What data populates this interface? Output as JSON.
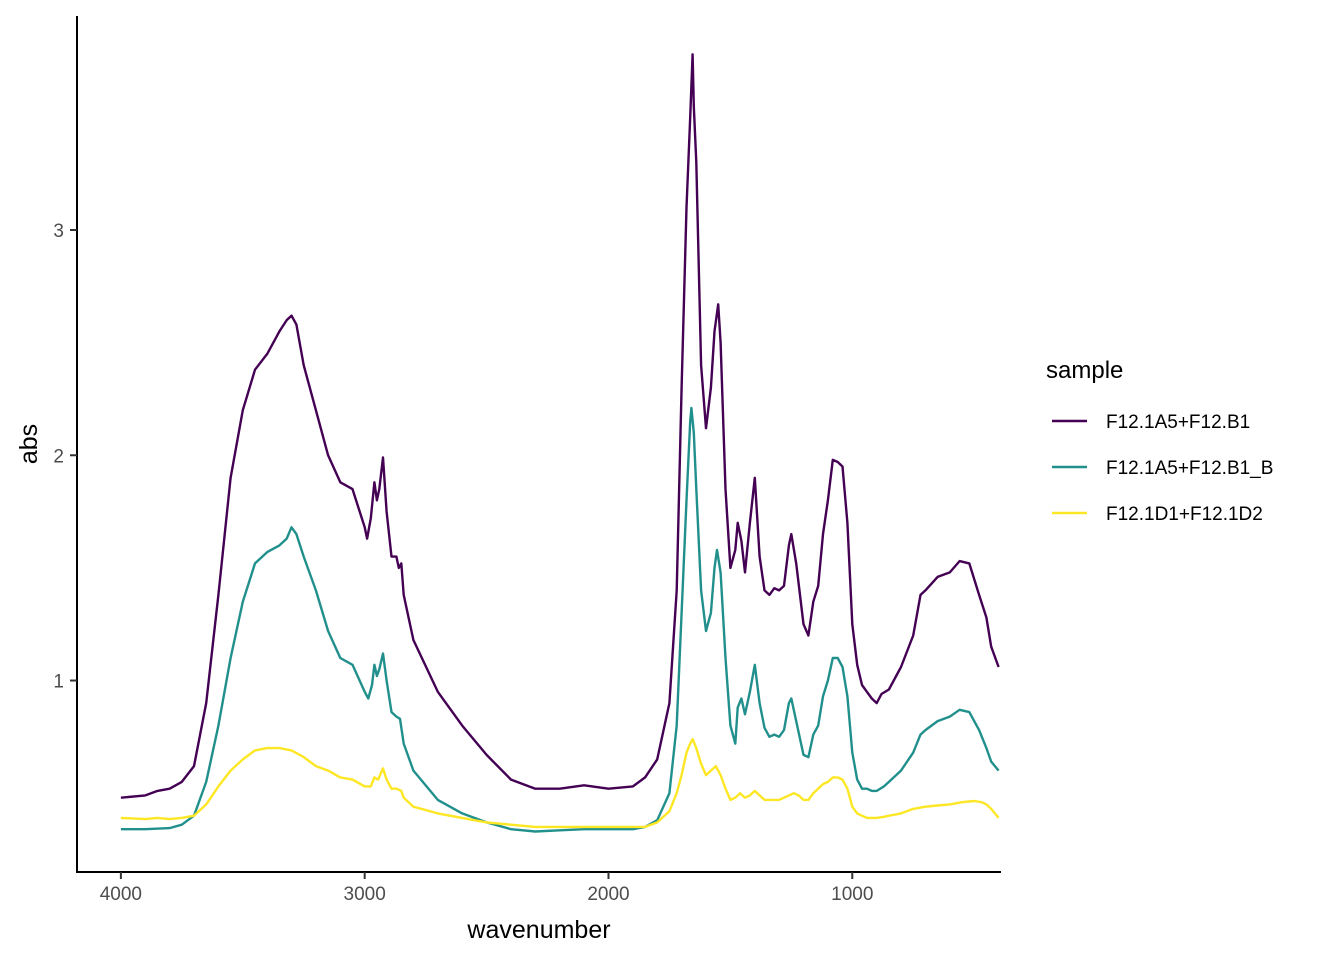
{
  "chart_data": {
    "type": "line",
    "xlabel": "wavenumber",
    "ylabel": "abs",
    "x_reversed": true,
    "xlim": [
      4180,
      390
    ],
    "ylim": [
      0.15,
      3.95
    ],
    "x_ticks": [
      4000,
      3000,
      2000,
      1000
    ],
    "y_ticks": [
      1,
      2,
      3
    ],
    "grid": false,
    "legend": {
      "title": "sample",
      "position": "right"
    },
    "series": [
      {
        "name": "F12.1A5+F12.B1",
        "color": "#440154",
        "points": [
          [
            4000,
            0.48
          ],
          [
            3900,
            0.49
          ],
          [
            3850,
            0.51
          ],
          [
            3800,
            0.52
          ],
          [
            3750,
            0.55
          ],
          [
            3700,
            0.62
          ],
          [
            3650,
            0.9
          ],
          [
            3600,
            1.38
          ],
          [
            3550,
            1.9
          ],
          [
            3500,
            2.2
          ],
          [
            3450,
            2.38
          ],
          [
            3400,
            2.45
          ],
          [
            3350,
            2.55
          ],
          [
            3320,
            2.6
          ],
          [
            3300,
            2.62
          ],
          [
            3280,
            2.58
          ],
          [
            3250,
            2.4
          ],
          [
            3200,
            2.2
          ],
          [
            3150,
            2.0
          ],
          [
            3100,
            1.88
          ],
          [
            3050,
            1.85
          ],
          [
            3000,
            1.68
          ],
          [
            2990,
            1.63
          ],
          [
            2975,
            1.72
          ],
          [
            2960,
            1.88
          ],
          [
            2950,
            1.8
          ],
          [
            2940,
            1.85
          ],
          [
            2925,
            1.99
          ],
          [
            2910,
            1.75
          ],
          [
            2890,
            1.55
          ],
          [
            2870,
            1.55
          ],
          [
            2860,
            1.5
          ],
          [
            2850,
            1.52
          ],
          [
            2840,
            1.38
          ],
          [
            2800,
            1.18
          ],
          [
            2700,
            0.95
          ],
          [
            2600,
            0.8
          ],
          [
            2500,
            0.67
          ],
          [
            2400,
            0.56
          ],
          [
            2300,
            0.52
          ],
          [
            2200,
            0.52
          ],
          [
            2100,
            0.535
          ],
          [
            2000,
            0.52
          ],
          [
            1900,
            0.53
          ],
          [
            1850,
            0.57
          ],
          [
            1800,
            0.65
          ],
          [
            1750,
            0.9
          ],
          [
            1720,
            1.4
          ],
          [
            1700,
            2.3
          ],
          [
            1680,
            3.1
          ],
          [
            1665,
            3.5
          ],
          [
            1655,
            3.78
          ],
          [
            1650,
            3.55
          ],
          [
            1640,
            3.3
          ],
          [
            1620,
            2.4
          ],
          [
            1600,
            2.12
          ],
          [
            1580,
            2.3
          ],
          [
            1565,
            2.55
          ],
          [
            1550,
            2.67
          ],
          [
            1540,
            2.5
          ],
          [
            1520,
            1.85
          ],
          [
            1500,
            1.5
          ],
          [
            1480,
            1.58
          ],
          [
            1470,
            1.7
          ],
          [
            1455,
            1.62
          ],
          [
            1440,
            1.48
          ],
          [
            1420,
            1.7
          ],
          [
            1400,
            1.9
          ],
          [
            1380,
            1.55
          ],
          [
            1360,
            1.4
          ],
          [
            1340,
            1.38
          ],
          [
            1320,
            1.41
          ],
          [
            1300,
            1.4
          ],
          [
            1280,
            1.42
          ],
          [
            1260,
            1.6
          ],
          [
            1250,
            1.65
          ],
          [
            1230,
            1.52
          ],
          [
            1200,
            1.25
          ],
          [
            1180,
            1.2
          ],
          [
            1160,
            1.35
          ],
          [
            1140,
            1.42
          ],
          [
            1120,
            1.65
          ],
          [
            1100,
            1.8
          ],
          [
            1080,
            1.98
          ],
          [
            1060,
            1.97
          ],
          [
            1040,
            1.95
          ],
          [
            1020,
            1.7
          ],
          [
            1000,
            1.25
          ],
          [
            980,
            1.07
          ],
          [
            960,
            0.98
          ],
          [
            940,
            0.95
          ],
          [
            920,
            0.92
          ],
          [
            900,
            0.9
          ],
          [
            880,
            0.94
          ],
          [
            850,
            0.96
          ],
          [
            800,
            1.06
          ],
          [
            750,
            1.2
          ],
          [
            720,
            1.38
          ],
          [
            700,
            1.4
          ],
          [
            650,
            1.46
          ],
          [
            600,
            1.48
          ],
          [
            560,
            1.53
          ],
          [
            520,
            1.52
          ],
          [
            480,
            1.38
          ],
          [
            450,
            1.28
          ],
          [
            430,
            1.15
          ],
          [
            400,
            1.06
          ]
        ]
      },
      {
        "name": "F12.1A5+F12.B1_B",
        "color": "#21908C",
        "points": [
          [
            4000,
            0.34
          ],
          [
            3900,
            0.34
          ],
          [
            3800,
            0.345
          ],
          [
            3750,
            0.36
          ],
          [
            3700,
            0.4
          ],
          [
            3650,
            0.55
          ],
          [
            3600,
            0.8
          ],
          [
            3550,
            1.1
          ],
          [
            3500,
            1.35
          ],
          [
            3450,
            1.52
          ],
          [
            3400,
            1.57
          ],
          [
            3350,
            1.6
          ],
          [
            3320,
            1.63
          ],
          [
            3300,
            1.68
          ],
          [
            3280,
            1.65
          ],
          [
            3250,
            1.55
          ],
          [
            3200,
            1.4
          ],
          [
            3150,
            1.22
          ],
          [
            3100,
            1.1
          ],
          [
            3050,
            1.07
          ],
          [
            3000,
            0.95
          ],
          [
            2985,
            0.92
          ],
          [
            2970,
            0.98
          ],
          [
            2960,
            1.07
          ],
          [
            2950,
            1.02
          ],
          [
            2940,
            1.05
          ],
          [
            2925,
            1.12
          ],
          [
            2910,
            1.0
          ],
          [
            2890,
            0.86
          ],
          [
            2870,
            0.84
          ],
          [
            2855,
            0.83
          ],
          [
            2840,
            0.72
          ],
          [
            2800,
            0.6
          ],
          [
            2700,
            0.47
          ],
          [
            2600,
            0.41
          ],
          [
            2500,
            0.37
          ],
          [
            2400,
            0.34
          ],
          [
            2300,
            0.33
          ],
          [
            2200,
            0.335
          ],
          [
            2100,
            0.34
          ],
          [
            2000,
            0.34
          ],
          [
            1900,
            0.34
          ],
          [
            1850,
            0.35
          ],
          [
            1800,
            0.38
          ],
          [
            1750,
            0.5
          ],
          [
            1720,
            0.8
          ],
          [
            1700,
            1.3
          ],
          [
            1680,
            1.8
          ],
          [
            1665,
            2.15
          ],
          [
            1660,
            2.21
          ],
          [
            1650,
            2.1
          ],
          [
            1640,
            1.85
          ],
          [
            1620,
            1.4
          ],
          [
            1600,
            1.22
          ],
          [
            1580,
            1.3
          ],
          [
            1565,
            1.5
          ],
          [
            1555,
            1.58
          ],
          [
            1540,
            1.48
          ],
          [
            1520,
            1.1
          ],
          [
            1500,
            0.8
          ],
          [
            1480,
            0.72
          ],
          [
            1470,
            0.88
          ],
          [
            1455,
            0.92
          ],
          [
            1440,
            0.85
          ],
          [
            1420,
            0.95
          ],
          [
            1400,
            1.07
          ],
          [
            1380,
            0.9
          ],
          [
            1360,
            0.79
          ],
          [
            1340,
            0.75
          ],
          [
            1320,
            0.76
          ],
          [
            1300,
            0.75
          ],
          [
            1280,
            0.78
          ],
          [
            1260,
            0.9
          ],
          [
            1250,
            0.92
          ],
          [
            1230,
            0.82
          ],
          [
            1200,
            0.67
          ],
          [
            1180,
            0.66
          ],
          [
            1160,
            0.76
          ],
          [
            1140,
            0.8
          ],
          [
            1120,
            0.93
          ],
          [
            1100,
            1.0
          ],
          [
            1080,
            1.1
          ],
          [
            1060,
            1.1
          ],
          [
            1040,
            1.06
          ],
          [
            1020,
            0.93
          ],
          [
            1000,
            0.68
          ],
          [
            980,
            0.56
          ],
          [
            960,
            0.52
          ],
          [
            940,
            0.52
          ],
          [
            920,
            0.51
          ],
          [
            900,
            0.51
          ],
          [
            870,
            0.53
          ],
          [
            850,
            0.55
          ],
          [
            800,
            0.6
          ],
          [
            750,
            0.68
          ],
          [
            720,
            0.76
          ],
          [
            700,
            0.78
          ],
          [
            650,
            0.82
          ],
          [
            600,
            0.84
          ],
          [
            560,
            0.87
          ],
          [
            520,
            0.86
          ],
          [
            480,
            0.78
          ],
          [
            450,
            0.7
          ],
          [
            430,
            0.64
          ],
          [
            400,
            0.6
          ]
        ]
      },
      {
        "name": "F12.1D1+F12.1D2",
        "color": "#FDE725",
        "points": [
          [
            4000,
            0.39
          ],
          [
            3900,
            0.385
          ],
          [
            3850,
            0.39
          ],
          [
            3800,
            0.385
          ],
          [
            3750,
            0.39
          ],
          [
            3700,
            0.4
          ],
          [
            3650,
            0.45
          ],
          [
            3600,
            0.53
          ],
          [
            3550,
            0.6
          ],
          [
            3500,
            0.65
          ],
          [
            3450,
            0.69
          ],
          [
            3400,
            0.7
          ],
          [
            3350,
            0.7
          ],
          [
            3300,
            0.69
          ],
          [
            3250,
            0.66
          ],
          [
            3200,
            0.62
          ],
          [
            3150,
            0.6
          ],
          [
            3100,
            0.57
          ],
          [
            3050,
            0.56
          ],
          [
            3000,
            0.53
          ],
          [
            2975,
            0.53
          ],
          [
            2960,
            0.57
          ],
          [
            2945,
            0.56
          ],
          [
            2925,
            0.61
          ],
          [
            2910,
            0.56
          ],
          [
            2890,
            0.52
          ],
          [
            2870,
            0.52
          ],
          [
            2850,
            0.51
          ],
          [
            2840,
            0.48
          ],
          [
            2800,
            0.44
          ],
          [
            2700,
            0.41
          ],
          [
            2600,
            0.39
          ],
          [
            2500,
            0.37
          ],
          [
            2400,
            0.36
          ],
          [
            2300,
            0.35
          ],
          [
            2200,
            0.35
          ],
          [
            2100,
            0.35
          ],
          [
            2000,
            0.35
          ],
          [
            1900,
            0.35
          ],
          [
            1850,
            0.35
          ],
          [
            1800,
            0.37
          ],
          [
            1750,
            0.42
          ],
          [
            1720,
            0.5
          ],
          [
            1700,
            0.58
          ],
          [
            1680,
            0.68
          ],
          [
            1665,
            0.72
          ],
          [
            1655,
            0.74
          ],
          [
            1640,
            0.7
          ],
          [
            1620,
            0.63
          ],
          [
            1600,
            0.58
          ],
          [
            1580,
            0.6
          ],
          [
            1560,
            0.62
          ],
          [
            1540,
            0.58
          ],
          [
            1520,
            0.52
          ],
          [
            1500,
            0.47
          ],
          [
            1480,
            0.48
          ],
          [
            1460,
            0.5
          ],
          [
            1440,
            0.48
          ],
          [
            1420,
            0.49
          ],
          [
            1400,
            0.51
          ],
          [
            1380,
            0.49
          ],
          [
            1360,
            0.47
          ],
          [
            1340,
            0.47
          ],
          [
            1300,
            0.47
          ],
          [
            1280,
            0.48
          ],
          [
            1260,
            0.49
          ],
          [
            1240,
            0.5
          ],
          [
            1220,
            0.49
          ],
          [
            1200,
            0.47
          ],
          [
            1180,
            0.47
          ],
          [
            1160,
            0.5
          ],
          [
            1140,
            0.52
          ],
          [
            1120,
            0.54
          ],
          [
            1100,
            0.55
          ],
          [
            1080,
            0.57
          ],
          [
            1060,
            0.57
          ],
          [
            1040,
            0.56
          ],
          [
            1020,
            0.52
          ],
          [
            1000,
            0.44
          ],
          [
            980,
            0.41
          ],
          [
            960,
            0.4
          ],
          [
            940,
            0.39
          ],
          [
            920,
            0.39
          ],
          [
            900,
            0.39
          ],
          [
            870,
            0.395
          ],
          [
            850,
            0.4
          ],
          [
            800,
            0.41
          ],
          [
            750,
            0.43
          ],
          [
            700,
            0.44
          ],
          [
            650,
            0.445
          ],
          [
            600,
            0.45
          ],
          [
            550,
            0.46
          ],
          [
            500,
            0.465
          ],
          [
            470,
            0.46
          ],
          [
            450,
            0.45
          ],
          [
            430,
            0.43
          ],
          [
            400,
            0.39
          ]
        ]
      }
    ]
  }
}
